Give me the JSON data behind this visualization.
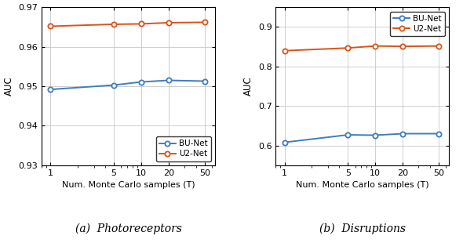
{
  "x": [
    1,
    5,
    10,
    20,
    50
  ],
  "photo_bunet": [
    0.9492,
    0.9503,
    0.9511,
    0.9515,
    0.9513
  ],
  "photo_u2net": [
    0.9652,
    0.9657,
    0.9658,
    0.9661,
    0.9662
  ],
  "disrupt_bunet": [
    0.608,
    0.627,
    0.626,
    0.63,
    0.63
  ],
  "disrupt_u2net": [
    0.84,
    0.847,
    0.852,
    0.851,
    0.852
  ],
  "color_blue": "#3E7DBF",
  "color_orange": "#D95319",
  "label_bunet": "BU-Net",
  "label_u2net": "U2-Net",
  "xlabel": "Num. Monte Carlo samples (T)",
  "ylabel": "AUC",
  "caption_a": "(a)  Photoreceptors",
  "caption_b": "(b)  Disruptions",
  "ylim_a": [
    0.93,
    0.97
  ],
  "ylim_b": [
    0.55,
    0.95
  ],
  "yticks_a": [
    0.93,
    0.94,
    0.95,
    0.96,
    0.97
  ],
  "yticks_b": [
    0.6,
    0.7,
    0.8,
    0.9
  ],
  "xticks": [
    1,
    5,
    10,
    20,
    50
  ],
  "legend_a_loc": "lower right",
  "legend_b_loc": "upper right"
}
